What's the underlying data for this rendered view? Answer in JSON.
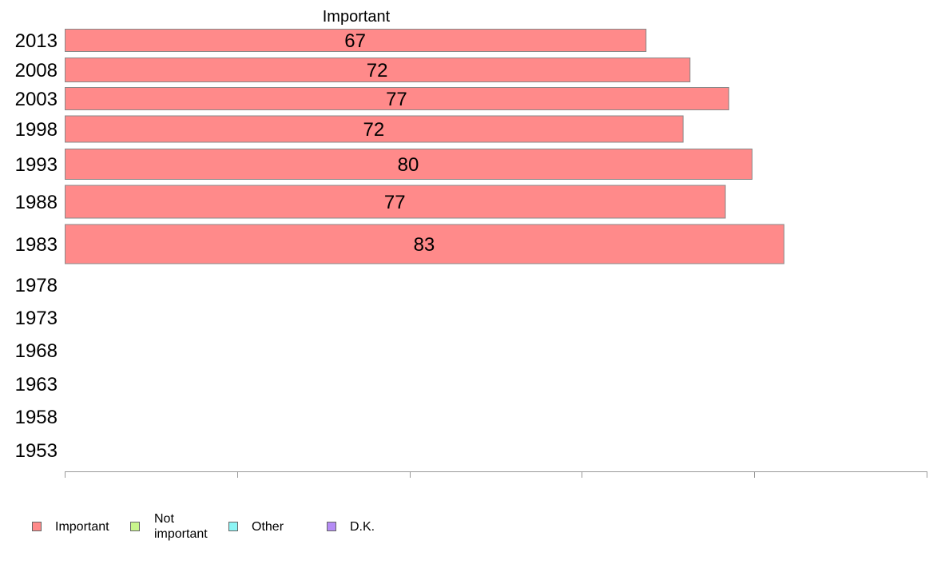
{
  "chart_data": {
    "type": "bar",
    "orientation": "horizontal",
    "series_title": "Important",
    "categories": [
      "2013",
      "2008",
      "2003",
      "1998",
      "1993",
      "1988",
      "1983",
      "1978",
      "1973",
      "1968",
      "1963",
      "1958",
      "1953"
    ],
    "series": [
      {
        "name": "Important",
        "color": "#ff8a8a",
        "values": [
          67.4,
          72.5,
          77.0,
          71.7,
          79.7,
          76.6,
          83.4,
          null,
          null,
          null,
          null,
          null,
          null
        ],
        "labels": [
          "67",
          "72",
          "77",
          "72",
          "80",
          "77",
          "83",
          "",
          "",
          "",
          "",
          "",
          ""
        ]
      }
    ],
    "xlim": [
      0,
      100
    ],
    "xticks": [
      0,
      20,
      40,
      60,
      80,
      100
    ],
    "grid": false,
    "legend_position": "bottom-left"
  },
  "legend": [
    {
      "label": "Important",
      "color": "#ff8a8a"
    },
    {
      "label": "Not\nimportant",
      "color": "#c8f58c"
    },
    {
      "label": "Other",
      "color": "#8cf5f5"
    },
    {
      "label": "D.K.",
      "color": "#b58cf5"
    }
  ]
}
